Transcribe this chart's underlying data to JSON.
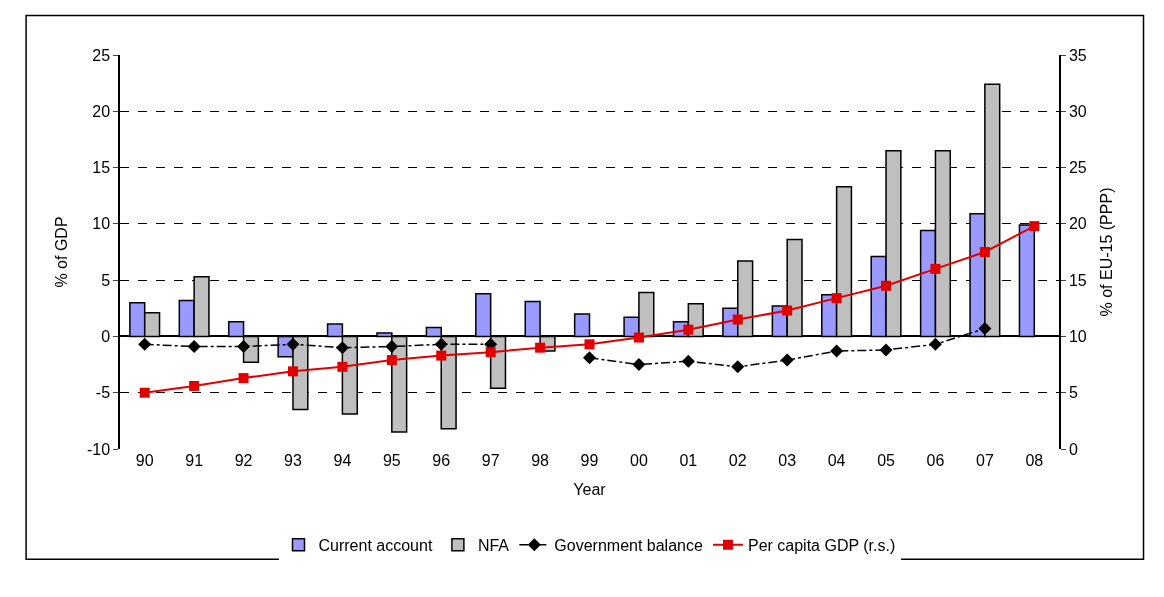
{
  "chart_data": {
    "type": "bar",
    "xlabel": "Year",
    "ylabel": "% of GDP",
    "y2label": "% of EU-15 (PPP)",
    "categories": [
      "90",
      "91",
      "92",
      "93",
      "94",
      "95",
      "96",
      "97",
      "98",
      "99",
      "00",
      "01",
      "02",
      "03",
      "04",
      "05",
      "06",
      "07",
      "08"
    ],
    "series": [
      {
        "name": "Current account",
        "color": "#9999ff",
        "values": [
          3.0,
          3.2,
          1.3,
          -1.8,
          1.1,
          0.3,
          0.8,
          3.8,
          3.1,
          2.0,
          1.7,
          1.3,
          2.5,
          2.7,
          3.7,
          7.1,
          9.4,
          10.9,
          9.9
        ]
      },
      {
        "name": "NFA",
        "color": "#bfbfbf",
        "values": [
          2.1,
          5.3,
          -2.3,
          -6.5,
          -6.9,
          -8.5,
          -8.2,
          -4.6,
          -1.3,
          null,
          3.9,
          2.9,
          6.7,
          8.6,
          13.3,
          16.5,
          16.5,
          22.4,
          null
        ]
      },
      {
        "name": "Government balance",
        "type": "line",
        "color": "#000000",
        "marker": "diamond",
        "line_style": "dashdot",
        "values": [
          -0.7,
          -0.9,
          -0.9,
          -0.7,
          -1.0,
          -0.9,
          -0.7,
          -0.7,
          null,
          -1.9,
          -2.5,
          -2.2,
          -2.7,
          -2.1,
          -1.3,
          -1.2,
          -0.7,
          0.7,
          null
        ]
      },
      {
        "name": "Per capita GDP (r.s.)",
        "type": "line",
        "color": "#e00000",
        "marker": "square",
        "line_style": "solid",
        "axis": "y2",
        "values": [
          5.0,
          5.6,
          6.3,
          6.9,
          7.3,
          7.9,
          8.3,
          8.6,
          9.0,
          9.3,
          9.9,
          10.6,
          11.5,
          12.3,
          13.4,
          14.5,
          16.0,
          17.5,
          19.8
        ]
      }
    ],
    "ylim": [
      -10,
      25
    ],
    "yticks": [
      -10,
      -5,
      0,
      5,
      10,
      15,
      20,
      25
    ],
    "y2lim": [
      0,
      35
    ],
    "y2ticks": [
      0,
      5,
      10,
      15,
      20,
      25,
      30,
      35
    ],
    "grid": "y",
    "legend": "bottom"
  }
}
